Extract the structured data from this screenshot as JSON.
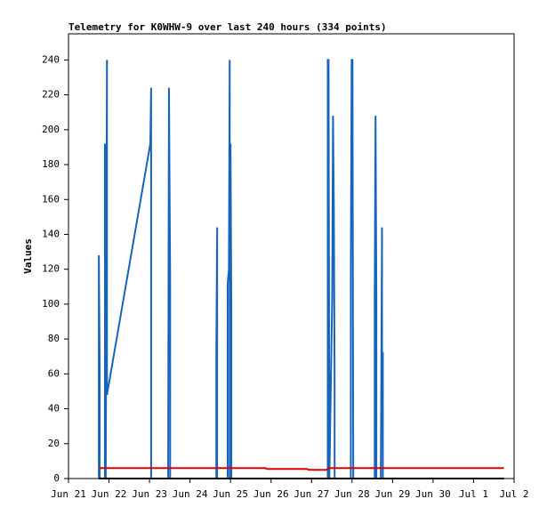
{
  "chart_data": {
    "type": "line",
    "title": "Telemetry for K0WHW-9 over last 240 hours (334 points)",
    "y_label": "Values",
    "xlim": [
      0,
      11
    ],
    "xticks": [
      {
        "value": 0,
        "label": "Jun 21"
      },
      {
        "value": 1,
        "label": "Jun 22"
      },
      {
        "value": 2,
        "label": "Jun 23"
      },
      {
        "value": 3,
        "label": "Jun 24"
      },
      {
        "value": 4,
        "label": "Jun 25"
      },
      {
        "value": 5,
        "label": "Jun 26"
      },
      {
        "value": 6,
        "label": "Jun 27"
      },
      {
        "value": 7,
        "label": "Jun 28"
      },
      {
        "value": 8,
        "label": "Jun 29"
      },
      {
        "value": 9,
        "label": "Jun 30"
      },
      {
        "value": 10,
        "label": "Jul 1"
      },
      {
        "value": 11,
        "label": "Jul 2"
      }
    ],
    "ylim": [
      0,
      255
    ],
    "yticks": [
      0,
      20,
      40,
      60,
      80,
      100,
      120,
      140,
      160,
      180,
      200,
      220,
      240
    ],
    "grid": false,
    "series": [
      {
        "color": "#1565c0",
        "x": [
          0.75,
          0.75,
          0.77,
          0.77,
          0.9,
          0.9,
          0.92,
          0.95,
          0.95,
          2.02,
          2.04,
          2.04,
          2.04,
          2.46,
          2.48,
          2.51,
          2.51,
          3.65,
          3.65,
          3.67,
          3.67,
          3.93,
          3.93,
          3.96,
          3.98,
          3.98,
          4.0,
          4.02,
          4.02,
          6.4,
          6.4,
          6.42,
          6.44,
          6.51,
          6.53,
          6.55,
          6.57,
          6.57,
          6.97,
          6.97,
          6.99,
          7.01,
          7.03,
          7.56,
          7.56,
          7.58,
          7.6,
          7.6,
          7.71,
          7.74,
          7.74,
          7.76,
          7.76
        ],
        "values": [
          0,
          128,
          64,
          0,
          0,
          192,
          0,
          240,
          48,
          192,
          224,
          96,
          0,
          0,
          224,
          112,
          0,
          0,
          72,
          144,
          0,
          0,
          112,
          120,
          240,
          0,
          192,
          96,
          0,
          0,
          240,
          240,
          0,
          104,
          208,
          156,
          52,
          0,
          0,
          120,
          240,
          240,
          0,
          0,
          104,
          208,
          104,
          0,
          0,
          144,
          72,
          72,
          0
        ]
      },
      {
        "color": "#e00000",
        "x": [
          0.75,
          4.86,
          4.9,
          5.89,
          5.93,
          6.37,
          6.42,
          10.75
        ],
        "values": [
          6,
          6,
          5.5,
          5.5,
          5,
          5,
          6,
          6
        ]
      },
      {
        "color": "#000000",
        "x": [
          0.75,
          10.75
        ],
        "values": [
          0,
          0
        ]
      }
    ]
  }
}
